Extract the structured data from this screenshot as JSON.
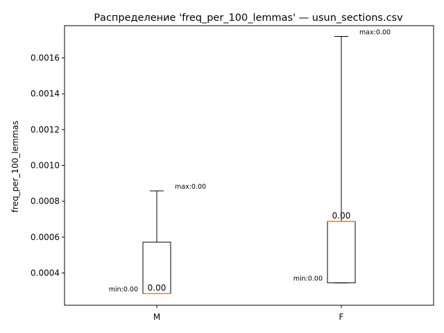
{
  "chart_data": {
    "type": "box",
    "title": "Распределение 'freq_per_100_lemmas' — usun_sections.csv",
    "xlabel": "",
    "ylabel": "freq_per_100_lemmas",
    "ylim": [
      0.00022,
      0.00178
    ],
    "yticks": [
      {
        "value": 0.0004,
        "label": "0.0004"
      },
      {
        "value": 0.0006,
        "label": "0.0006"
      },
      {
        "value": 0.0008,
        "label": "0.0008"
      },
      {
        "value": 0.001,
        "label": "0.0010"
      },
      {
        "value": 0.0012,
        "label": "0.0012"
      },
      {
        "value": 0.0014,
        "label": "0.0014"
      },
      {
        "value": 0.0016,
        "label": "0.0016"
      }
    ],
    "categories": [
      "M",
      "F"
    ],
    "boxes": [
      {
        "category": "M",
        "whisker_low": 0.000285,
        "q1": 0.000285,
        "median": 0.000285,
        "q3": 0.000572,
        "whisker_high": 0.000858,
        "median_label": "0.00",
        "min_label": "min:0.00",
        "max_label": "max:0.00"
      },
      {
        "category": "F",
        "whisker_low": 0.000345,
        "q1": 0.000345,
        "median": 0.000688,
        "q3": 0.000688,
        "whisker_high": 0.00172,
        "median_label": "0.00",
        "min_label": "min:0.00",
        "max_label": "max:0.00"
      }
    ],
    "grid": false,
    "colors": {
      "box": "#000000",
      "median": "#ff7f0e",
      "whisker": "#000000"
    }
  }
}
